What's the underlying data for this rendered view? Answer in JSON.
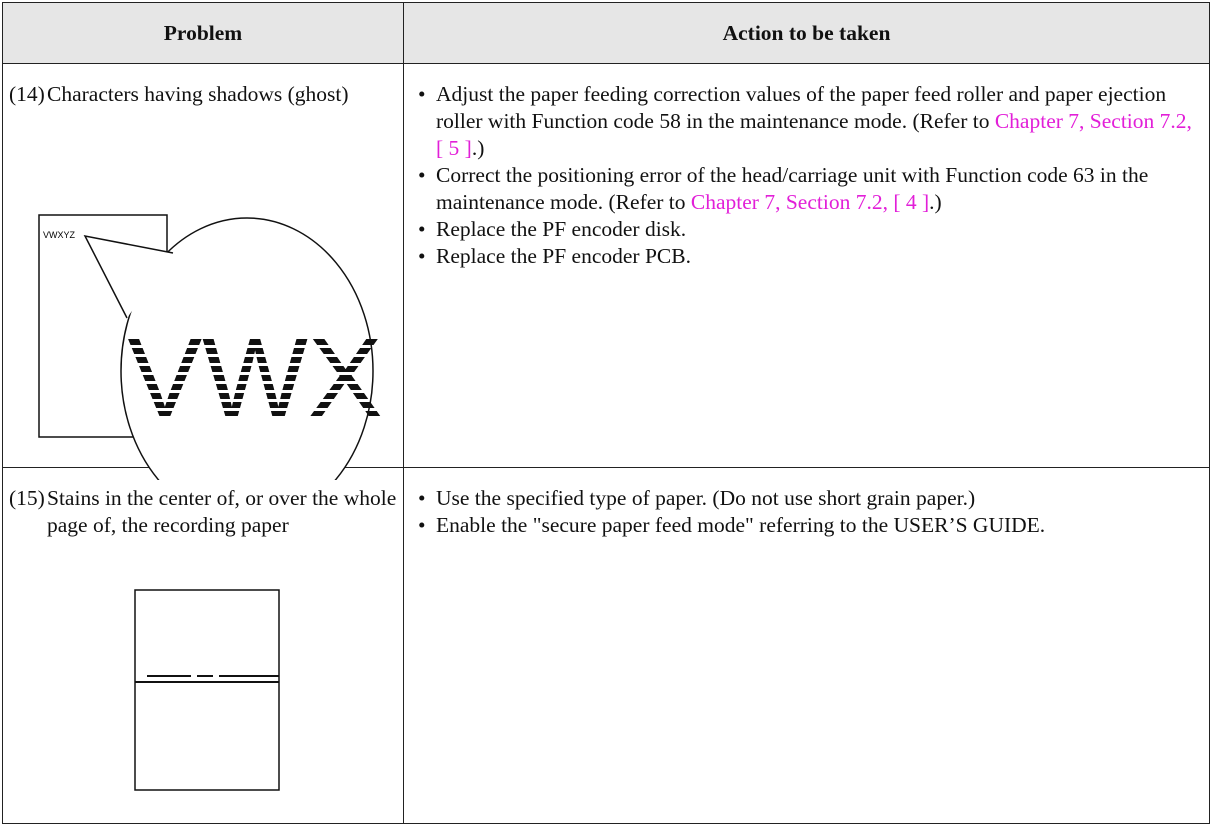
{
  "table": {
    "header": [
      "Problem",
      "Action to be taken"
    ],
    "rows": [
      {
        "number": "(14)",
        "problem": "Characters having shadows (ghost)",
        "figure": {
          "small_text": "VWXYZ",
          "large_text": "VWX"
        },
        "actions": [
          {
            "text": "Adjust the paper feeding correction values of the paper feed roller and paper ejection roller with Function code 58 in the maintenance mode. (Refer to ",
            "link": "Chapter 7, Section 7.2, [ 5 ]",
            "after": ".)"
          },
          {
            "text": "Correct the positioning error of the head/carriage unit with Function code 63 in the maintenance mode. (Refer to ",
            "link": "Chapter 7, Section 7.2, [ 4 ]",
            "after": ".)"
          },
          {
            "text": "Replace the PF encoder disk."
          },
          {
            "text": "Replace the PF encoder PCB."
          }
        ]
      },
      {
        "number": "(15)",
        "problem": "Stains in the center of, or over the whole page of, the recording paper",
        "actions": [
          {
            "text": "Use the specified type of paper. (Do not use short grain paper.)"
          },
          {
            "text": "Enable the \"secure paper feed mode\" referring to the USER’S GUIDE."
          }
        ]
      }
    ]
  }
}
